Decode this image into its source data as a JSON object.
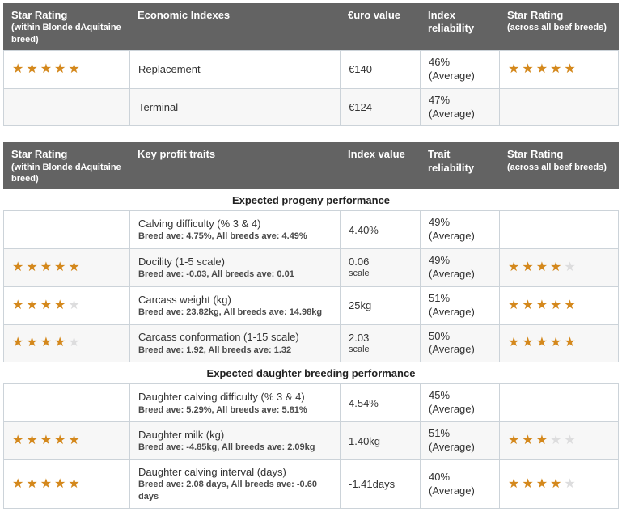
{
  "colors": {
    "header_bg": "#636363",
    "header_text": "#ffffff",
    "border": "#ccd3d9",
    "row_bg": "#ffffff",
    "row_alt_bg": "#f7f7f7",
    "star_filled": "#d4881c",
    "star_empty": "#ddddde"
  },
  "economic_table": {
    "header": {
      "col1_title": "Star Rating",
      "col1_sub": "(within Blonde dAquitaine breed)",
      "col2": "Economic Indexes",
      "col3": "€uro value",
      "col4": "Index reliability",
      "col5_title": "Star Rating",
      "col5_sub": "(across all beef breeds)"
    },
    "rows": [
      {
        "stars_within": 5,
        "label": "Replacement",
        "value": "€140",
        "reliability_pct": "46%",
        "reliability_note": "(Average)",
        "stars_across": 5
      },
      {
        "stars_within": null,
        "label": "Terminal",
        "value": "€124",
        "reliability_pct": "47%",
        "reliability_note": "(Average)",
        "stars_across": null
      }
    ]
  },
  "traits_table": {
    "header": {
      "col1_title": "Star Rating",
      "col1_sub": "(within Blonde dAquitaine breed)",
      "col2": "Key profit traits",
      "col3": "Index value",
      "col4": "Trait reliability",
      "col5_title": "Star Rating",
      "col5_sub": "(across all beef breeds)"
    },
    "sections": [
      {
        "title": "Expected progeny performance",
        "rows": [
          {
            "stars_within": null,
            "label": "Calving difficulty (% 3 & 4)",
            "sub": "Breed ave: 4.75%, All breeds ave: 4.49%",
            "value": "4.40%",
            "unit": "",
            "reliability_pct": "49%",
            "reliability_note": "(Average)",
            "stars_across": null
          },
          {
            "stars_within": 5,
            "label": "Docility (1-5 scale)",
            "sub": "Breed ave: -0.03, All breeds ave: 0.01",
            "value": "0.06",
            "unit": "scale",
            "reliability_pct": "49%",
            "reliability_note": "(Average)",
            "stars_across": 4
          },
          {
            "stars_within": 4,
            "label": "Carcass weight (kg)",
            "sub": "Breed ave: 23.82kg, All breeds ave: 14.98kg",
            "value": "25kg",
            "unit": "",
            "reliability_pct": "51%",
            "reliability_note": "(Average)",
            "stars_across": 5
          },
          {
            "stars_within": 4,
            "label": "Carcass conformation (1-15 scale)",
            "sub": "Breed ave: 1.92, All breeds ave: 1.32",
            "value": "2.03",
            "unit": "scale",
            "reliability_pct": "50%",
            "reliability_note": "(Average)",
            "stars_across": 5
          }
        ]
      },
      {
        "title": "Expected daughter breeding performance",
        "rows": [
          {
            "stars_within": null,
            "label": "Daughter calving difficulty (% 3 & 4)",
            "sub": "Breed ave: 5.29%, All breeds ave: 5.81%",
            "value": "4.54%",
            "unit": "",
            "reliability_pct": "45%",
            "reliability_note": "(Average)",
            "stars_across": null
          },
          {
            "stars_within": 5,
            "label": "Daughter milk (kg)",
            "sub": "Breed ave: -4.85kg, All breeds ave: 2.09kg",
            "value": "1.40kg",
            "unit": "",
            "reliability_pct": "51%",
            "reliability_note": "(Average)",
            "stars_across": 3
          },
          {
            "stars_within": 5,
            "label": "Daughter calving interval (days)",
            "sub": "Breed ave: 2.08 days, All breeds ave: -0.60 days",
            "value": "-1.41days",
            "unit": "",
            "reliability_pct": "40%",
            "reliability_note": "(Average)",
            "stars_across": 4
          }
        ]
      }
    ]
  },
  "star_glyph": "★",
  "stars_max": 5
}
